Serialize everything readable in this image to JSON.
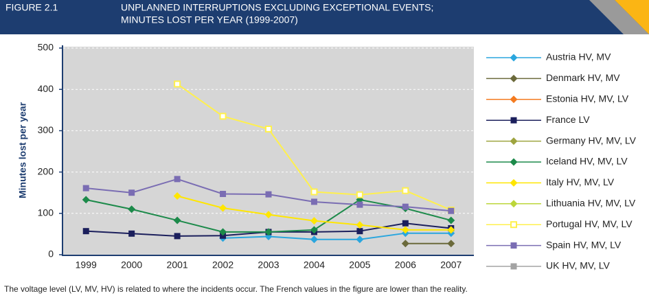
{
  "header": {
    "figure": "FIGURE 2.1",
    "title_lines": [
      "UNPLANNED INTERRUPTIONS EXCLUDING EXCEPTIONAL EVENTS;",
      "MINUTES LOST PER YEAR (1999-2007)"
    ]
  },
  "chart_data": {
    "type": "line",
    "y_label": "Minutes lost per year",
    "categories": [
      "1999",
      "2000",
      "2001",
      "2002",
      "2003",
      "2004",
      "2005",
      "2006",
      "2007"
    ],
    "ylim": [
      0,
      500
    ],
    "yticks": [
      0,
      100,
      200,
      300,
      400,
      500
    ],
    "grid": true,
    "legend": "right",
    "series": [
      {
        "name": "Austria HV, MV",
        "color": "#2aa6de",
        "marker": "diamond",
        "values": [
          null,
          null,
          null,
          40,
          44,
          37,
          37,
          52,
          52
        ]
      },
      {
        "name": "Denmark HV, MV",
        "color": "#6b6a3b",
        "marker": "diamond",
        "values": [
          null,
          null,
          null,
          null,
          null,
          null,
          null,
          27,
          27
        ]
      },
      {
        "name": "Estonia HV, MV, LV",
        "color": "#f47b20",
        "marker": "diamond",
        "values": [
          null,
          null,
          null,
          null,
          null,
          null,
          null,
          null,
          null
        ]
      },
      {
        "name": "France LV",
        "color": "#1b1f5c",
        "marker": "square",
        "values": [
          57,
          51,
          45,
          46,
          55,
          55,
          57,
          76,
          64
        ]
      },
      {
        "name": "Germany HV, MV, LV",
        "color": "#9ea43f",
        "marker": "diamond",
        "values": [
          null,
          null,
          null,
          null,
          null,
          null,
          null,
          null,
          null
        ]
      },
      {
        "name": "Iceland HV, MV, LV",
        "color": "#1c8a4a",
        "marker": "diamond",
        "values": [
          133,
          110,
          83,
          55,
          55,
          60,
          133,
          112,
          83
        ]
      },
      {
        "name": "Italy HV, MV, LV",
        "color": "#ffe600",
        "marker": "diamond",
        "values": [
          null,
          null,
          142,
          113,
          97,
          82,
          72,
          60,
          60
        ]
      },
      {
        "name": "Lithuania HV, MV, LV",
        "color": "#bcd63a",
        "marker": "diamond",
        "values": [
          null,
          null,
          null,
          null,
          null,
          null,
          null,
          null,
          null
        ]
      },
      {
        "name": "Portugal HV, MV, LV",
        "color": "#fff04d",
        "marker": "square-open",
        "values": [
          null,
          null,
          413,
          335,
          304,
          152,
          145,
          155,
          108
        ]
      },
      {
        "name": "Spain HV, MV, LV",
        "color": "#7a6db3",
        "marker": "square",
        "values": [
          161,
          150,
          183,
          147,
          146,
          128,
          121,
          116,
          106
        ]
      },
      {
        "name": "UK HV, MV, LV",
        "color": "#a3a3a3",
        "marker": "square",
        "values": [
          null,
          null,
          null,
          null,
          null,
          null,
          null,
          null,
          null
        ]
      }
    ]
  },
  "footnote": "The voltage level (LV, MV, HV) is related to where the incidents occur. The French values in the figure are lower than the reality."
}
